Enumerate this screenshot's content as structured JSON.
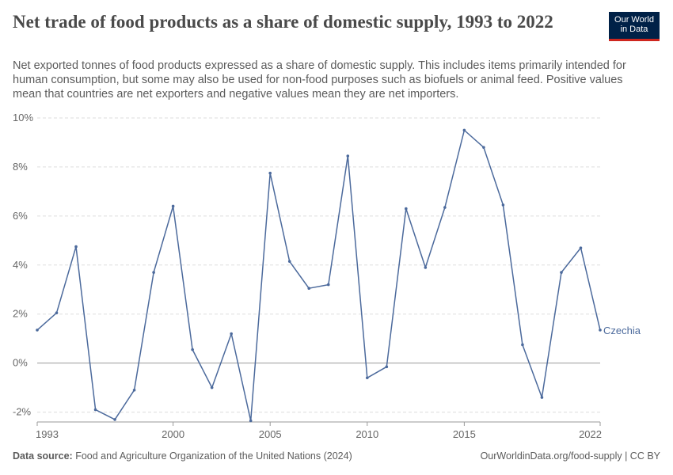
{
  "header": {
    "title": "Net trade of food products as a share of domestic supply, 1993 to 2022",
    "subtitle": "Net exported tonnes of food products expressed as a share of domestic supply. This includes items primarily intended for human consumption, but some may also be used for non-food purposes such as biofuels or animal feed. Positive values mean that countries are net exporters and negative values mean they are net importers.",
    "logo_line1": "Our World",
    "logo_line2": "in Data"
  },
  "footer": {
    "source_label": "Data source:",
    "source_text": "Food and Agriculture Organization of the United Nations (2024)",
    "credit": "OurWorldinData.org/food-supply | CC BY"
  },
  "colors": {
    "series": "#4c6a9c",
    "grid": "#dddddd",
    "zero_line": "#9a9a9a",
    "axis_text": "#666666",
    "logo_bg": "#002147",
    "logo_accent": "#ce261e"
  },
  "chart_data": {
    "type": "line",
    "title": "Net trade of food products as a share of domestic supply, 1993 to 2022",
    "xlabel": "",
    "ylabel": "",
    "xlim": [
      1993,
      2022
    ],
    "ylim": [
      -2.4,
      10
    ],
    "y_ticks": [
      -2,
      0,
      2,
      4,
      6,
      8,
      10
    ],
    "y_tick_labels": [
      "-2%",
      "0%",
      "2%",
      "4%",
      "6%",
      "8%",
      "10%"
    ],
    "x_ticks": [
      1993,
      2000,
      2005,
      2010,
      2015,
      2022
    ],
    "x_tick_labels": [
      "1993",
      "2000",
      "2005",
      "2010",
      "2015",
      "2022"
    ],
    "grid": true,
    "legend": "inline label at line end",
    "series": [
      {
        "name": "Czechia",
        "x": [
          1993,
          1994,
          1995,
          1996,
          1997,
          1998,
          1999,
          2000,
          2001,
          2002,
          2003,
          2004,
          2005,
          2006,
          2007,
          2008,
          2009,
          2010,
          2011,
          2012,
          2013,
          2014,
          2015,
          2016,
          2017,
          2018,
          2019,
          2020,
          2021,
          2022
        ],
        "values": [
          1.35,
          2.05,
          4.75,
          -1.9,
          -2.3,
          -1.1,
          3.7,
          6.4,
          0.55,
          -1.0,
          1.2,
          -2.35,
          7.75,
          4.15,
          3.05,
          3.2,
          8.45,
          -0.6,
          -0.15,
          6.3,
          3.9,
          6.35,
          9.5,
          8.8,
          6.45,
          0.75,
          -1.4,
          3.7,
          4.7,
          1.35
        ]
      }
    ]
  }
}
